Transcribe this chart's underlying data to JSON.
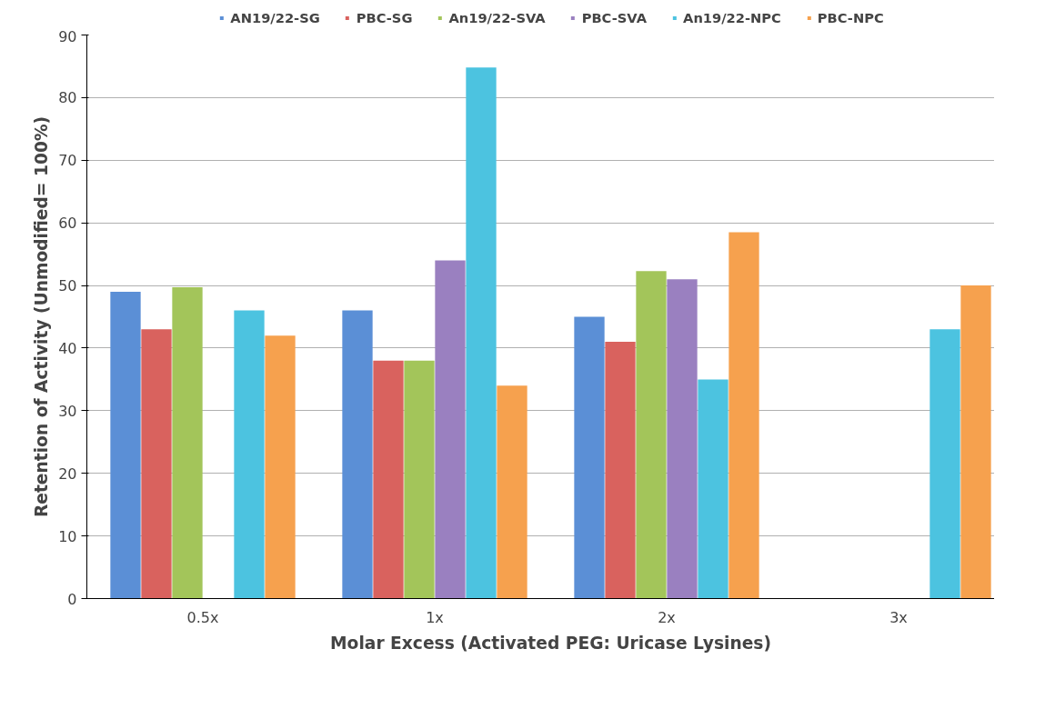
{
  "chart_data": {
    "type": "bar",
    "xlabel": "Molar Excess (Activated PEG: Uricase Lysines)",
    "ylabel": "Retention of Activity (Unmodified= 100%)",
    "categories": [
      "0.5x",
      "1x",
      "2x",
      "3x"
    ],
    "series": [
      {
        "name": "AN19/22-SG",
        "color": "#5b8fd6",
        "values": [
          49,
          46,
          45,
          null
        ]
      },
      {
        "name": "PBC-SG",
        "color": "#d9625e",
        "values": [
          43,
          38,
          41,
          null
        ]
      },
      {
        "name": "An19/22-SVA",
        "color": "#a3c55a",
        "values": [
          49.7,
          38,
          52.3,
          null
        ]
      },
      {
        "name": "PBC-SVA",
        "color": "#9a80c0",
        "values": [
          null,
          54,
          51,
          null
        ]
      },
      {
        "name": "An19/22-NPC",
        "color": "#4cc3e0",
        "values": [
          46,
          84.8,
          35,
          43
        ]
      },
      {
        "name": "PBC-NPC",
        "color": "#f6a14e",
        "values": [
          42,
          34,
          58.5,
          50
        ]
      }
    ],
    "ylim": [
      0,
      90
    ],
    "yticks": [
      0,
      10,
      20,
      30,
      40,
      50,
      60,
      70,
      80,
      90
    ],
    "grid": "y",
    "legend": "top"
  }
}
